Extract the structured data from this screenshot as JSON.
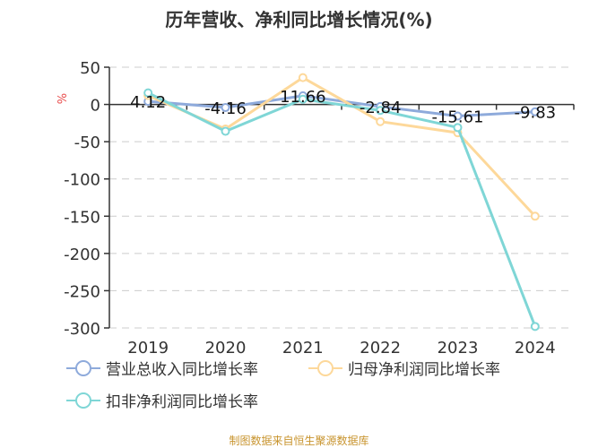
{
  "chart_data": {
    "type": "line",
    "title": "历年营收、净利同比增长情况(%)",
    "xlabel": "",
    "ylabel": "%",
    "x": [
      "2019",
      "2020",
      "2021",
      "2022",
      "2023",
      "2024"
    ],
    "ylim": [
      -300,
      50
    ],
    "yticks": [
      50,
      0,
      -50,
      -100,
      -150,
      -200,
      -250,
      -300
    ],
    "grid": true,
    "legend_position": "bottom-left",
    "series": [
      {
        "name": "营业总收入同比增长率",
        "color": "#8eaadb",
        "values": [
          4.12,
          -4.16,
          11.66,
          -2.84,
          -15.61,
          -9.83
        ],
        "labels": [
          "4.12",
          "-4.16",
          "11.66",
          "-2.84",
          "-15.61",
          "-9.83"
        ]
      },
      {
        "name": "归母净利润同比增长率",
        "color": "#fdd89a",
        "values": [
          12,
          -33,
          36,
          -23,
          -38,
          -150
        ]
      },
      {
        "name": "扣非净利润同比增长率",
        "color": "#7fd6d6",
        "values": [
          15.6,
          -36,
          7,
          -8,
          -31,
          -298
        ]
      }
    ],
    "source": "制图数据来自恒生聚源数据库"
  }
}
